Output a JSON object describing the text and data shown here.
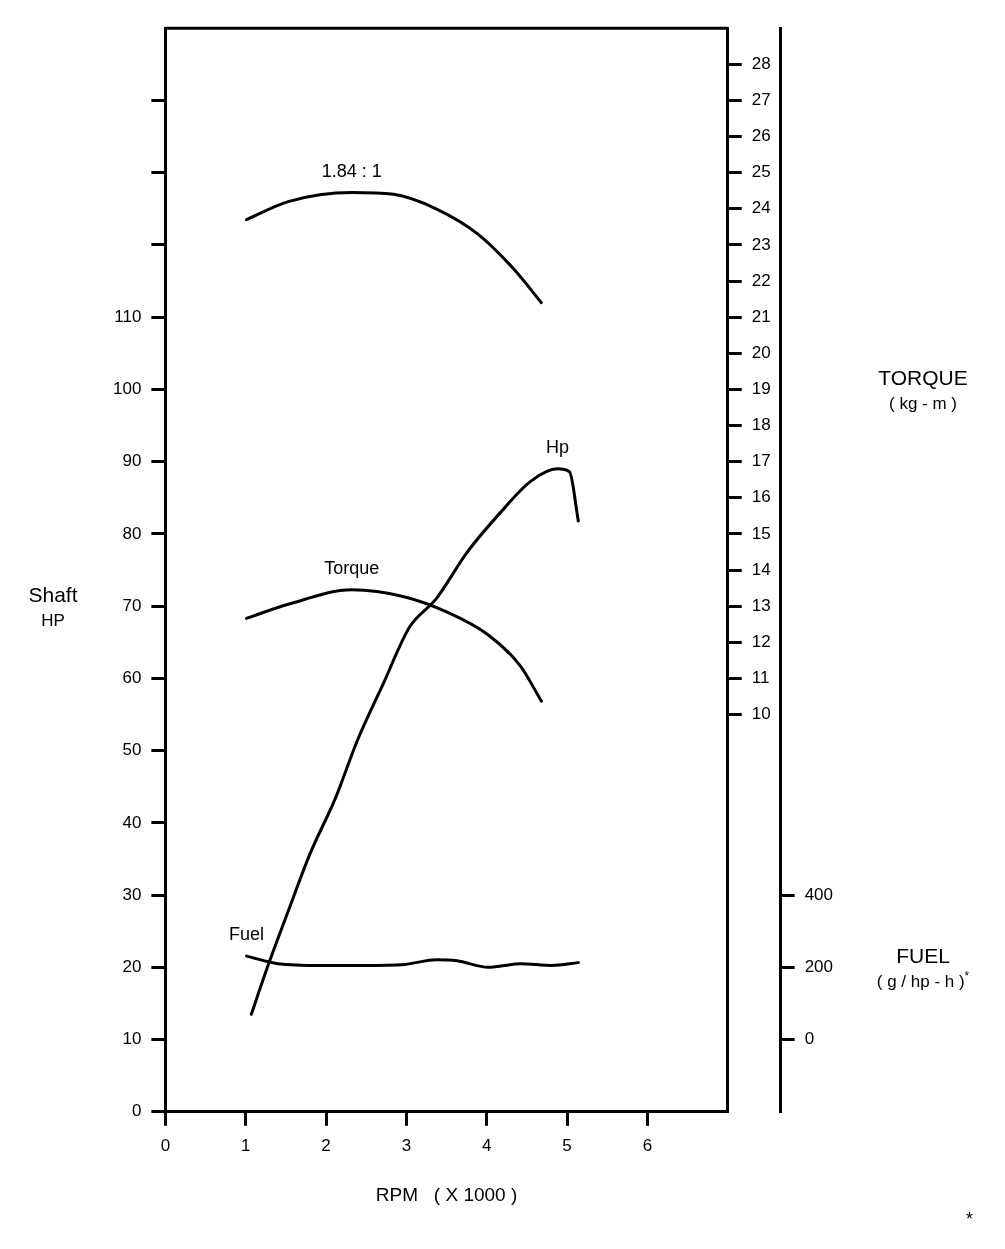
{
  "chart_data": {
    "type": "line",
    "xlabel": "RPM   ( X 1000 )",
    "ylabel": "Shaft\nHP",
    "y2label": "TORQUE\n( kg - m )",
    "y3label": "FUEL\n( g / hp - h )$^{*}$",
    "xlim": [
      0,
      7
    ],
    "xticks": [
      0,
      1,
      2,
      3,
      4,
      5,
      6
    ],
    "ylim": [
      0,
      150
    ],
    "yticks": [
      0,
      10,
      20,
      30,
      40,
      50,
      60,
      70,
      80,
      90,
      100,
      110,
      {
        "value": 120,
        "label": null
      },
      {
        "value": 130,
        "label": null
      },
      {
        "value": 140,
        "label": null
      }
    ],
    "y2lim": [
      -1,
      29
    ],
    "y2ticks": [
      10,
      11,
      12,
      13,
      14,
      15,
      16,
      17,
      18,
      19,
      20,
      21,
      22,
      23,
      24,
      25,
      26,
      27,
      28
    ],
    "y3lim": [
      -200,
      2800
    ],
    "y3ticks": [
      0,
      200,
      400
    ],
    "grid": false,
    "legend": false,
    "marker": "none",
    "line_style": "solid",
    "series": [
      {
        "name": "1.84 : 1",
        "color": "#000000",
        "axis": "y2",
        "x": [
          1.01,
          1.53,
          2.32,
          2.84,
          3.37,
          3.89,
          4.35,
          4.68
        ],
        "values": [
          23.7,
          24.2,
          24.45,
          24.4,
          24.0,
          23.3,
          22.3,
          21.4
        ]
      },
      {
        "name": "Hp",
        "color": "#000000",
        "axis": "y",
        "x": [
          1.07,
          1.27,
          1.53,
          1.8,
          2.12,
          2.39,
          2.71,
          3.04,
          3.37,
          3.76,
          4.15,
          4.55,
          4.88,
          5.03,
          5.14
        ],
        "values": [
          13.5,
          20,
          27.8,
          35.7,
          43.5,
          51.4,
          59.2,
          67.1,
          71,
          77.5,
          82.7,
          87.3,
          89,
          88.6,
          81.8
        ]
      },
      {
        "name": "Torque",
        "color": "#000000",
        "axis": "y2",
        "x": [
          1.01,
          1.53,
          2.32,
          2.97,
          3.5,
          4.02,
          4.42,
          4.68
        ],
        "values": [
          12.66,
          13.05,
          13.45,
          13.26,
          12.84,
          12.2,
          11.34,
          10.37
        ]
      },
      {
        "name": "Fuel",
        "color": "#000000",
        "axis": "y3",
        "x": [
          1.01,
          1.4,
          1.93,
          2.45,
          2.98,
          3.37,
          3.63,
          4.02,
          4.42,
          4.81,
          5.14
        ],
        "values": [
          231,
          210,
          205,
          205,
          208,
          221,
          218,
          200,
          210,
          205,
          213
        ]
      }
    ],
    "annotations": [
      "*"
    ]
  }
}
